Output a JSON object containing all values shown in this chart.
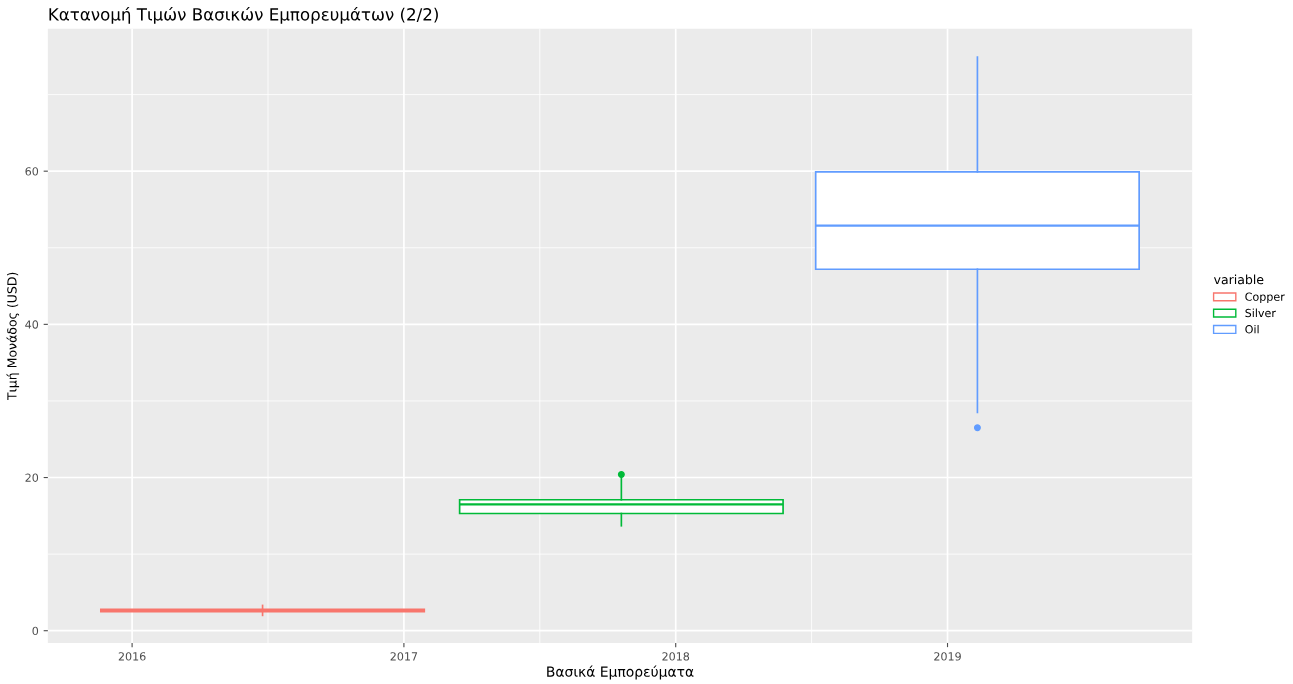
{
  "chart_data": {
    "type": "box",
    "title": "Κατανομή Τιμών Βασικών Εμπορευμάτων (2/2)",
    "xlabel": "Βασικά Εμπορεύματα",
    "ylabel": "Τιμή Μονάδος (USD)",
    "legend_title": "variable",
    "x": [
      2016.48,
      2017.8,
      2019.11
    ],
    "series": [
      {
        "name": "Copper",
        "color": "#f8766d",
        "boxes": [
          {
            "low": 2.0,
            "q1": 2.5,
            "median": 2.65,
            "q3": 2.8,
            "high": 3.3
          },
          null,
          null
        ]
      },
      {
        "name": "Silver",
        "color": "#00ba38",
        "boxes": [
          null,
          {
            "low": 13.7,
            "q1": 15.3,
            "median": 16.5,
            "q3": 17.1,
            "high": 20.0,
            "outliers": [
              20.4
            ]
          },
          null
        ]
      },
      {
        "name": "Oil",
        "color": "#619cff",
        "boxes": [
          null,
          null,
          {
            "low": 28.5,
            "q1": 47.2,
            "median": 52.9,
            "q3": 59.9,
            "high": 74.9,
            "outliers": [
              26.5
            ]
          }
        ]
      }
    ],
    "xlim": [
      2015.69,
      2019.9
    ],
    "xticks": [
      2016,
      2017,
      2018,
      2019
    ],
    "ylim": [
      -1.6,
      78.6
    ],
    "yticks": [
      0,
      20,
      40,
      60
    ],
    "grid": true,
    "legend": "right"
  }
}
